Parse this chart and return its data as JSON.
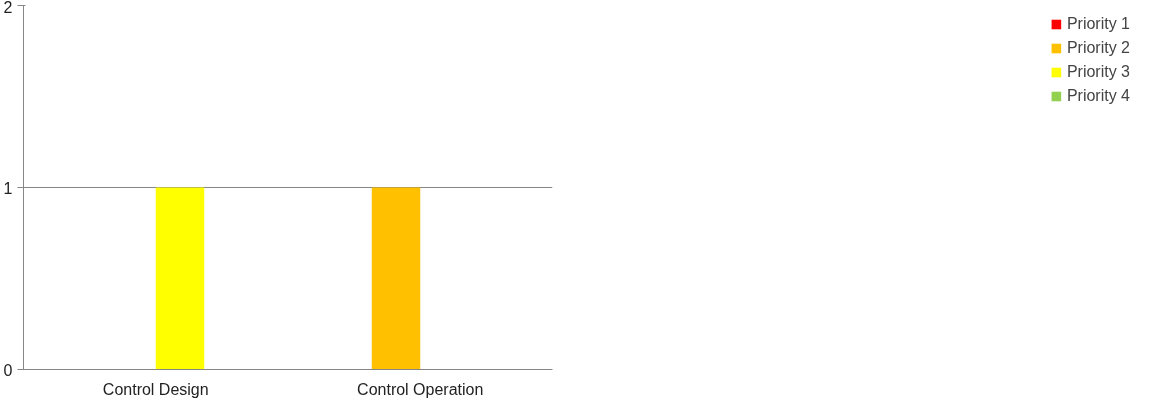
{
  "chart_data": {
    "type": "bar",
    "categories": [
      "Control Design",
      "Control Operation"
    ],
    "series": [
      {
        "name": "Priority 1",
        "color": "#ff0000",
        "values": [
          0,
          0
        ]
      },
      {
        "name": "Priority 2",
        "color": "#ffc000",
        "values": [
          0,
          1
        ]
      },
      {
        "name": "Priority 3",
        "color": "#ffff00",
        "values": [
          1,
          0
        ]
      },
      {
        "name": "Priority 4",
        "color": "#92d050",
        "values": [
          0,
          0
        ]
      }
    ],
    "ylim": [
      0,
      2
    ],
    "yticks": [
      0,
      1,
      2
    ],
    "grid": "y",
    "legend": "right"
  }
}
